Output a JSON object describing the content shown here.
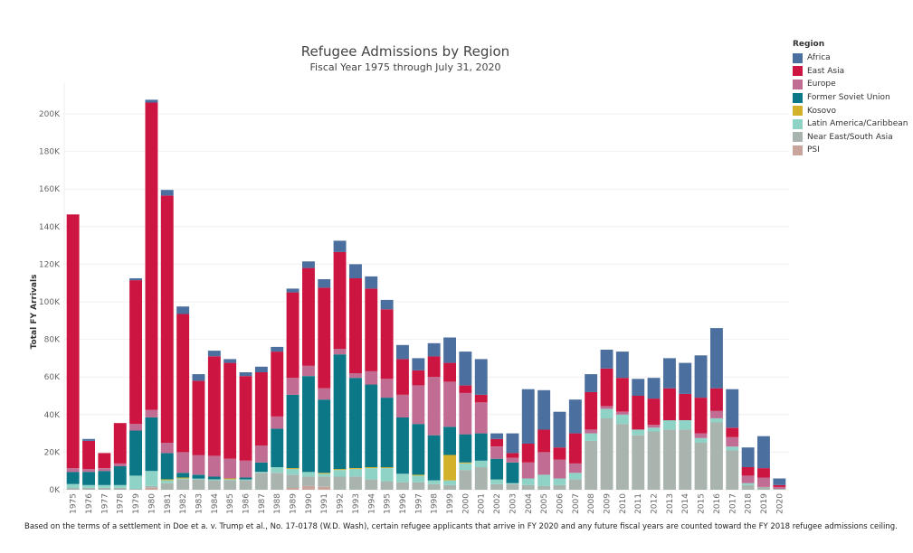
{
  "chart_data": {
    "type": "bar",
    "stacked": true,
    "title": "Refugee Admissions by Region",
    "subtitle": "Fiscal Year 1975 through July 31, 2020",
    "xlabel": "",
    "ylabel": "Total FY Arrivals",
    "ylim": [
      0,
      210000
    ],
    "yticks": [
      0,
      20000,
      40000,
      60000,
      80000,
      100000,
      120000,
      140000,
      160000,
      180000,
      200000
    ],
    "ytick_labels": [
      "0K",
      "20K",
      "40K",
      "60K",
      "80K",
      "100K",
      "120K",
      "140K",
      "160K",
      "180K",
      "200K"
    ],
    "grid": true,
    "legend_title": "Region",
    "legend_position": "top-right",
    "categories": [
      "1975",
      "1976",
      "1977",
      "1978",
      "1979",
      "1980",
      "1981",
      "1982",
      "1983",
      "1984",
      "1985",
      "1986",
      "1987",
      "1988",
      "1989",
      "1990",
      "1991",
      "1992",
      "1993",
      "1994",
      "1995",
      "1996",
      "1997",
      "1998",
      "1999",
      "2000",
      "2001",
      "2002",
      "2003",
      "2004",
      "2005",
      "2006",
      "2007",
      "2008",
      "2009",
      "2010",
      "2011",
      "2012",
      "2013",
      "2014",
      "2015",
      "2016",
      "2017",
      "2018",
      "2019",
      "2020"
    ],
    "series": [
      {
        "name": "PSI",
        "color": "#c9a49a",
        "values": [
          0,
          0,
          0,
          0,
          0,
          1000,
          0,
          0,
          0,
          0,
          0,
          0,
          0,
          0,
          1000,
          2000,
          1500,
          0,
          0,
          0,
          0,
          0,
          0,
          0,
          0,
          0,
          0,
          0,
          0,
          0,
          0,
          0,
          0,
          0,
          0,
          0,
          0,
          0,
          0,
          0,
          0,
          0,
          0,
          0,
          0,
          0
        ]
      },
      {
        "name": "Near East/South Asia",
        "color": "#a9b4ae",
        "values": [
          1000,
          1000,
          1000,
          1000,
          500,
          1000,
          3500,
          5500,
          5500,
          5000,
          5000,
          5000,
          9000,
          9000,
          7000,
          5000,
          5500,
          7000,
          7000,
          5500,
          4500,
          4000,
          4000,
          3000,
          2500,
          10500,
          12000,
          3000,
          3000,
          2500,
          2000,
          2500,
          5500,
          26000,
          38000,
          35000,
          29000,
          31000,
          32000,
          32000,
          25000,
          36000,
          21000,
          2500,
          1500,
          500
        ]
      },
      {
        "name": "Latin America/Caribbean",
        "color": "#8ed3c5",
        "values": [
          2000,
          1500,
          1500,
          1500,
          7000,
          8000,
          1500,
          500,
          500,
          500,
          500,
          500,
          500,
          3000,
          3000,
          2500,
          1500,
          3500,
          4000,
          6000,
          7000,
          4500,
          3500,
          2000,
          2500,
          3500,
          3500,
          2500,
          500,
          3500,
          6000,
          3500,
          3500,
          4000,
          5000,
          5000,
          3000,
          2000,
          5000,
          5000,
          2500,
          2000,
          2000,
          1000,
          0,
          0
        ]
      },
      {
        "name": "Kosovo",
        "color": "#d4b12a",
        "values": [
          0,
          0,
          0,
          0,
          0,
          0,
          500,
          500,
          0,
          0,
          500,
          0,
          0,
          0,
          500,
          0,
          500,
          500,
          500,
          500,
          500,
          0,
          500,
          0,
          13500,
          500,
          0,
          0,
          0,
          0,
          0,
          0,
          0,
          0,
          0,
          0,
          0,
          0,
          0,
          0,
          0,
          0,
          0,
          0,
          0,
          0
        ]
      },
      {
        "name": "Former Soviet Union",
        "color": "#0b7787",
        "values": [
          6500,
          7000,
          7500,
          10000,
          24000,
          28500,
          14000,
          2500,
          2000,
          1500,
          0,
          1000,
          5000,
          20500,
          39000,
          51000,
          39000,
          61000,
          48000,
          44000,
          37000,
          30000,
          27000,
          24000,
          15000,
          15000,
          14500,
          11000,
          11000,
          0,
          0,
          0,
          0,
          0,
          0,
          0,
          0,
          0,
          0,
          0,
          0,
          0,
          0,
          0,
          0,
          0
        ]
      },
      {
        "name": "Europe",
        "color": "#c16c92",
        "values": [
          2000,
          1500,
          1500,
          1500,
          3500,
          4000,
          5500,
          11000,
          10500,
          11000,
          10500,
          9000,
          9000,
          6500,
          9000,
          5500,
          6000,
          3000,
          2500,
          7000,
          10000,
          12000,
          20500,
          31000,
          24000,
          22000,
          16500,
          6500,
          2500,
          8500,
          12000,
          10000,
          5000,
          2000,
          1500,
          1500,
          0,
          1500,
          0,
          0,
          2500,
          4000,
          5000,
          4000,
          5000,
          1000
        ]
      },
      {
        "name": "East Asia",
        "color": "#cc1540",
        "values": [
          135000,
          15000,
          8000,
          21500,
          76500,
          163500,
          131500,
          73500,
          39500,
          53000,
          51000,
          45000,
          39000,
          34500,
          45500,
          52000,
          53500,
          51500,
          50500,
          44000,
          37000,
          19000,
          8000,
          11000,
          10000,
          4000,
          4000,
          4000,
          2500,
          10000,
          12000,
          6500,
          16000,
          20000,
          20000,
          18000,
          18000,
          14000,
          17000,
          14000,
          19000,
          12000,
          5000,
          4500,
          5000,
          1000
        ]
      },
      {
        "name": "Africa",
        "color": "#4b6f9e",
        "values": [
          0,
          1000,
          0,
          0,
          1000,
          1500,
          3000,
          4000,
          3500,
          3000,
          2000,
          2000,
          3000,
          2500,
          2000,
          3500,
          4500,
          6000,
          7500,
          6500,
          5000,
          7500,
          6500,
          7000,
          13500,
          18000,
          19000,
          3000,
          10500,
          29000,
          21000,
          19000,
          18000,
          9500,
          10000,
          14000,
          9000,
          11000,
          16000,
          16500,
          22500,
          32000,
          20500,
          10500,
          17000,
          3500
        ]
      }
    ]
  },
  "footnote": "Based on the terms of a settlement in Doe et a. v. Trump et al., No. 17-0178 (W.D. Wash), certain refugee applicants that arrive in FY 2020 and any future fiscal years are counted toward the FY 2018 refugee admissions ceiling.",
  "legend_items": [
    {
      "label": "Africa",
      "color": "#4b6f9e"
    },
    {
      "label": "East Asia",
      "color": "#cc1540"
    },
    {
      "label": "Europe",
      "color": "#c16c92"
    },
    {
      "label": "Former Soviet Union",
      "color": "#0b7787"
    },
    {
      "label": "Kosovo",
      "color": "#d4b12a"
    },
    {
      "label": "Latin America/Caribbean",
      "color": "#8ed3c5"
    },
    {
      "label": "Near East/South Asia",
      "color": "#a9b4ae"
    },
    {
      "label": "PSI",
      "color": "#c9a49a"
    }
  ]
}
